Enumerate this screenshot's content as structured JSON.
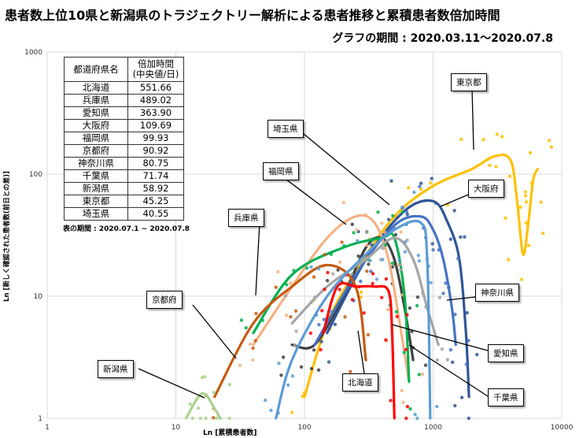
{
  "title": "患者数上位10県と新潟県のトラジェクトリー解析による患者推移と累積患者数倍加時間",
  "subtitle": "グラフの期間 : 2020.03.11〜2020.07.8",
  "table": {
    "headers": [
      "都道府県名",
      "倍加時間\n(中央値/日)"
    ],
    "rows": [
      [
        "北海道",
        "551.66"
      ],
      [
        "兵庫県",
        "489.02"
      ],
      [
        "愛知県",
        "363.90"
      ],
      [
        "大阪府",
        "109.69"
      ],
      [
        "福岡県",
        "99.93"
      ],
      [
        "京都府",
        "90.92"
      ],
      [
        "神奈川県",
        "80.75"
      ],
      [
        "千葉県",
        "71.74"
      ],
      [
        "新潟県",
        "58.92"
      ],
      [
        "東京都",
        "45.25"
      ],
      [
        "埼玉県",
        "40.55"
      ]
    ],
    "note": "表の期間 : 2020.07.1 ~ 2020.07.8"
  },
  "callouts": {
    "tokyo": "東京都",
    "saitama": "埼玉県",
    "osaka": "大阪府",
    "fukuoka": "福岡県",
    "hyogo": "兵庫県",
    "kanagawa": "神奈川県",
    "kyoto": "京都府",
    "aichi": "愛知県",
    "hokkaido": "北海道",
    "niigata": "新潟県",
    "chiba": "千葉県"
  },
  "chart_data": {
    "type": "line",
    "xlabel": "Ln [累積患者数]",
    "ylabel": "Ln [新しく確認された患者数(前日との差)]",
    "xscale": "log",
    "yscale": "log",
    "xlim": [
      1,
      10000
    ],
    "ylim": [
      1,
      1000
    ],
    "x_ticks": [
      "1",
      "10",
      "100",
      "1000",
      "10000"
    ],
    "y_ticks": [
      "1",
      "10",
      "100",
      "1000"
    ],
    "grid": true,
    "series": [
      {
        "name": "東京都",
        "color": "#FFC000",
        "points": [
          [
            100,
            1.5
          ],
          [
            150,
            6
          ],
          [
            250,
            16
          ],
          [
            500,
            45
          ],
          [
            1000,
            80
          ],
          [
            2000,
            110
          ],
          [
            3000,
            140
          ],
          [
            4000,
            130
          ],
          [
            4500,
            60
          ],
          [
            5000,
            22
          ],
          [
            5500,
            40
          ],
          [
            6000,
            90
          ],
          [
            6500,
            110
          ]
        ]
      },
      {
        "name": "大阪府",
        "color": "#2F5597",
        "points": [
          [
            150,
            5
          ],
          [
            300,
            20
          ],
          [
            600,
            50
          ],
          [
            1000,
            60
          ],
          [
            1300,
            40
          ],
          [
            1600,
            20
          ],
          [
            1800,
            5
          ],
          [
            1900,
            1.5
          ]
        ]
      },
      {
        "name": "埼玉県",
        "color": "#404040",
        "points": [
          [
            80,
            4
          ],
          [
            120,
            4
          ],
          [
            200,
            10
          ],
          [
            300,
            25
          ],
          [
            400,
            30
          ],
          [
            500,
            20
          ],
          [
            600,
            8
          ],
          [
            700,
            3
          ]
        ]
      },
      {
        "name": "神奈川県",
        "color": "#4472C4",
        "points": [
          [
            120,
            4
          ],
          [
            250,
            15
          ],
          [
            500,
            38
          ],
          [
            800,
            45
          ],
          [
            1000,
            35
          ],
          [
            1200,
            20
          ],
          [
            1400,
            8
          ],
          [
            1500,
            4
          ]
        ]
      },
      {
        "name": "福岡県",
        "color": "#F4B183",
        "points": [
          [
            40,
            4
          ],
          [
            80,
            12
          ],
          [
            150,
            30
          ],
          [
            250,
            45
          ],
          [
            350,
            40
          ],
          [
            450,
            20
          ],
          [
            550,
            6
          ],
          [
            650,
            2
          ]
        ]
      },
      {
        "name": "兵庫県",
        "color": "#00B050",
        "points": [
          [
            40,
            5
          ],
          [
            80,
            15
          ],
          [
            200,
            25
          ],
          [
            400,
            30
          ],
          [
            500,
            30
          ],
          [
            600,
            10
          ],
          [
            650,
            2
          ]
        ]
      },
      {
        "name": "京都府",
        "color": "#C55A11",
        "points": [
          [
            20,
            1.5
          ],
          [
            40,
            6
          ],
          [
            80,
            12
          ],
          [
            150,
            18
          ],
          [
            250,
            12
          ],
          [
            300,
            3
          ]
        ]
      },
      {
        "name": "愛知県",
        "color": "#A5A5A5",
        "points": [
          [
            80,
            6
          ],
          [
            150,
            12
          ],
          [
            300,
            20
          ],
          [
            500,
            30
          ],
          [
            700,
            20
          ],
          [
            900,
            8
          ],
          [
            1100,
            4
          ]
        ]
      },
      {
        "name": "北海道",
        "color": "#FF0000",
        "points": [
          [
            140,
            5
          ],
          [
            180,
            12
          ],
          [
            250,
            12
          ],
          [
            350,
            12
          ],
          [
            450,
            11
          ],
          [
            480,
            5
          ],
          [
            500,
            1
          ]
        ]
      },
      {
        "name": "千葉県",
        "color": "#5B9BD5",
        "points": [
          [
            60,
            1
          ],
          [
            80,
            3
          ],
          [
            150,
            10
          ],
          [
            300,
            22
          ],
          [
            500,
            35
          ],
          [
            800,
            40
          ],
          [
            900,
            20
          ],
          [
            950,
            1
          ]
        ]
      },
      {
        "name": "新潟県",
        "color": "#A9D18E",
        "points": [
          [
            12,
            1
          ],
          [
            16,
            1.6
          ],
          [
            20,
            1.2
          ],
          [
            22,
            1
          ]
        ]
      }
    ]
  }
}
